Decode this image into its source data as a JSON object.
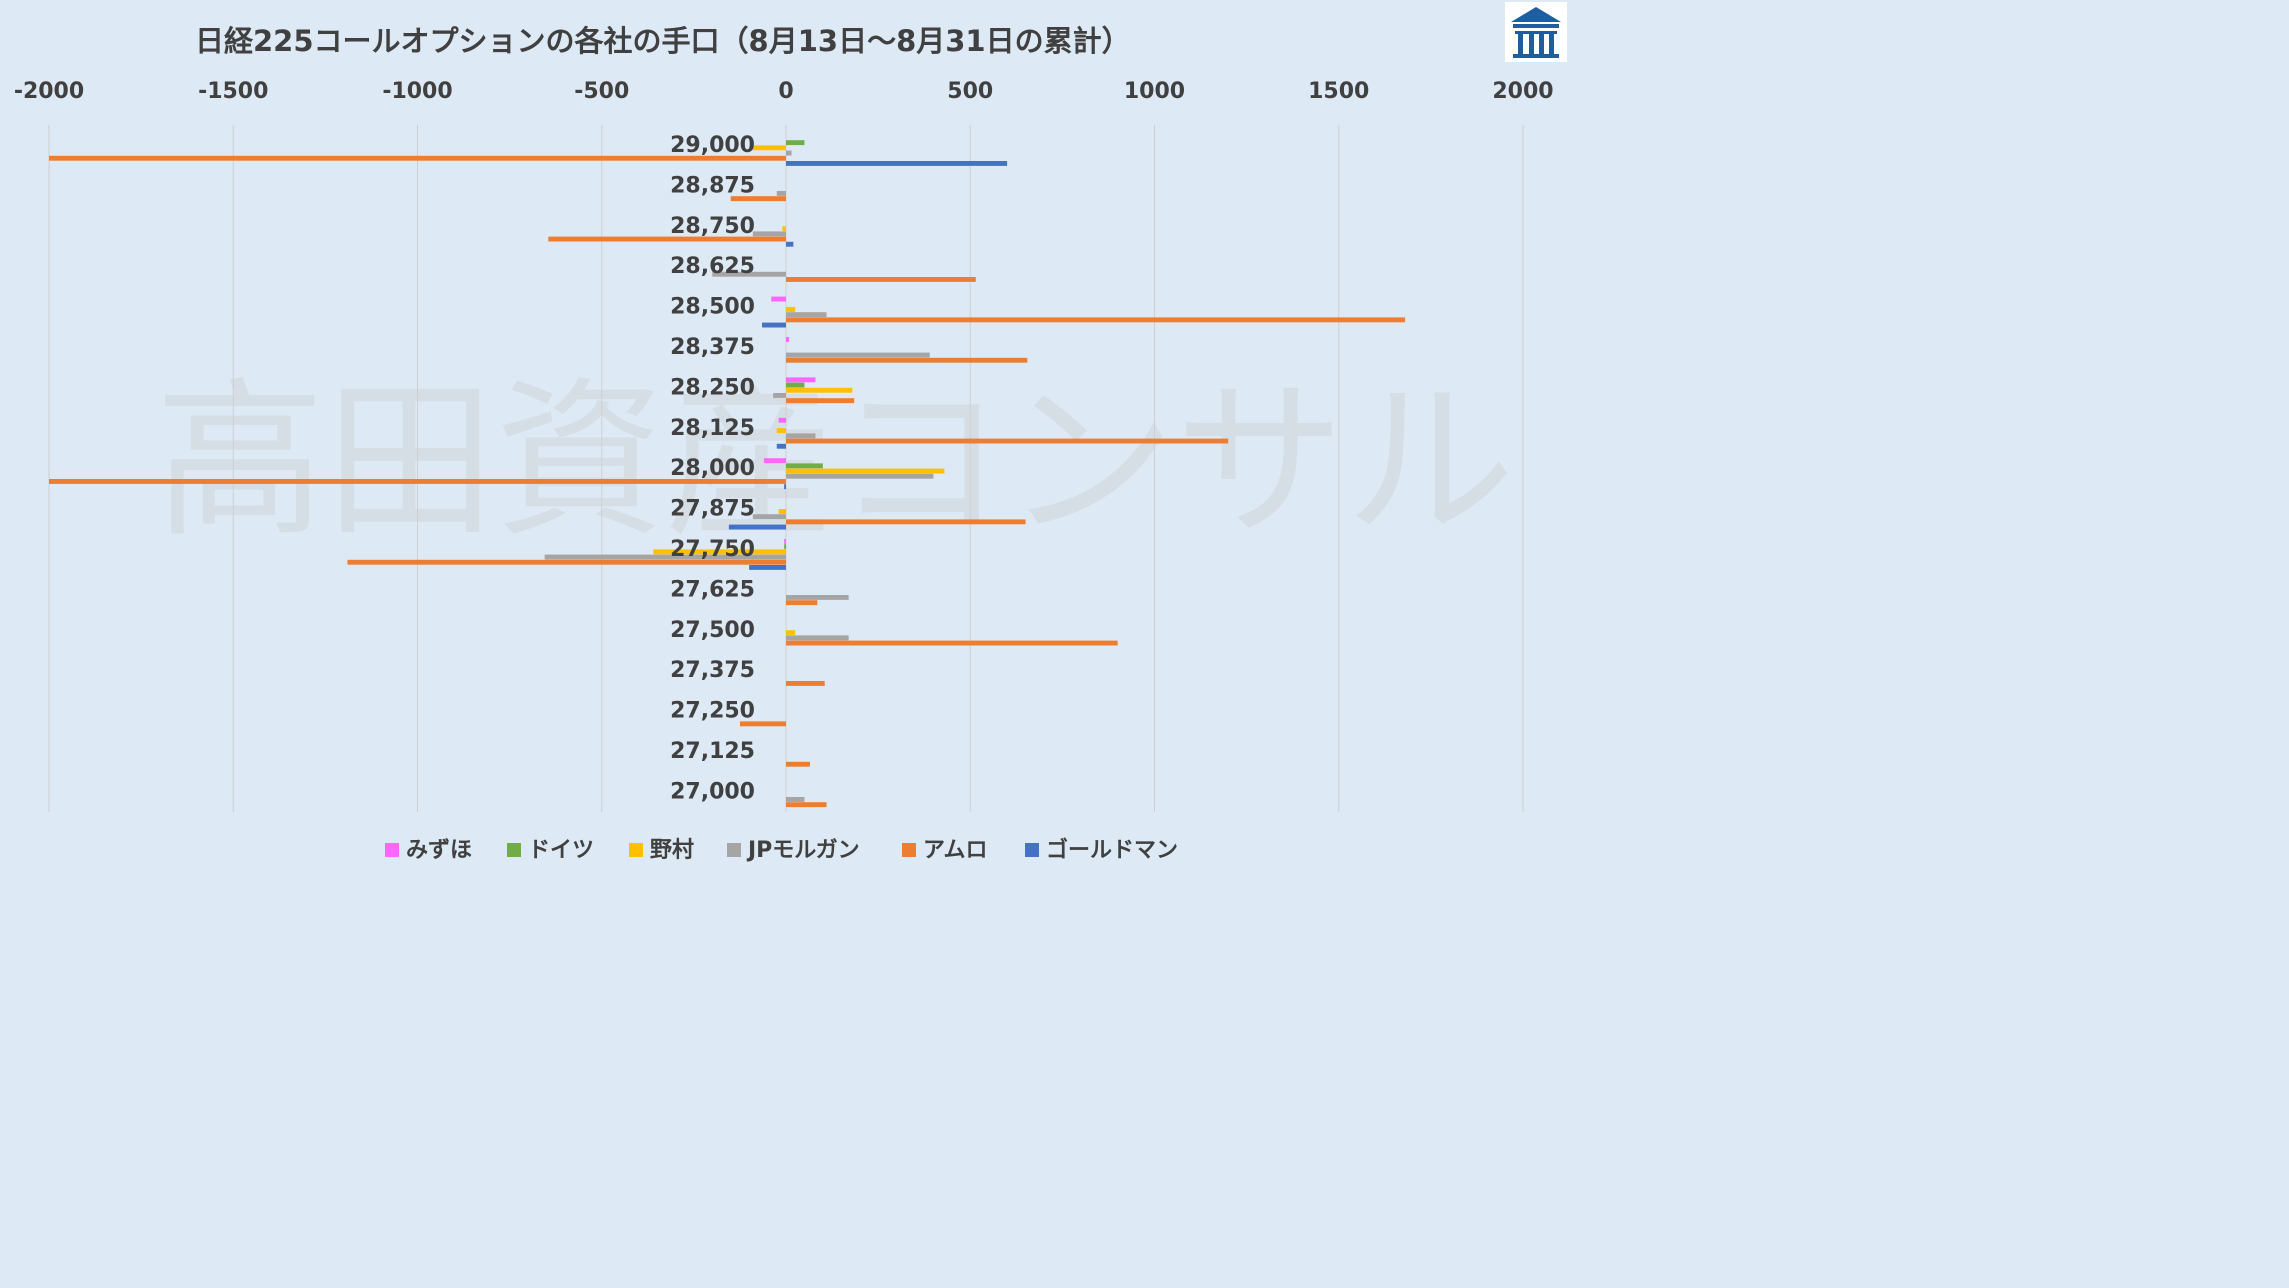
{
  "chart_data": {
    "type": "bar",
    "orientation": "horizontal",
    "title": "日経225コールオプションの各社の手口（8月13日～8月31日の累計）",
    "watermark": "高田資産コンサル",
    "x_ticks": [
      "-2000",
      "-1500",
      "-1000",
      "-500",
      "0",
      "500",
      "1000",
      "1500",
      "2000"
    ],
    "xlim": [
      -2000,
      2000
    ],
    "x_axis_position": "top",
    "grid": true,
    "legend_position": "bottom",
    "categories": [
      "29,000",
      "28,875",
      "28,750",
      "28,625",
      "28,500",
      "28,375",
      "28,250",
      "28,125",
      "28,000",
      "27,875",
      "27,750",
      "27,625",
      "27,500",
      "27,375",
      "27,250",
      "27,125",
      "27,000"
    ],
    "series": [
      {
        "name": "みずほ",
        "color": "#ff66ff",
        "values": [
          0,
          0,
          0,
          0,
          -40,
          8,
          80,
          -20,
          -60,
          0,
          -5,
          0,
          0,
          0,
          0,
          0,
          0
        ]
      },
      {
        "name": "ドイツ",
        "color": "#70ad47",
        "values": [
          50,
          0,
          0,
          0,
          0,
          0,
          50,
          0,
          100,
          0,
          -5,
          0,
          0,
          0,
          0,
          0,
          0
        ]
      },
      {
        "name": "野村",
        "color": "#ffc000",
        "values": [
          -90,
          0,
          -10,
          0,
          25,
          0,
          180,
          -25,
          430,
          -20,
          -360,
          0,
          25,
          0,
          0,
          0,
          0
        ]
      },
      {
        "name": "JPモルガン",
        "color": "#a5a5a5",
        "values": [
          15,
          -25,
          -90,
          -200,
          110,
          390,
          -35,
          80,
          400,
          -90,
          -655,
          170,
          170,
          0,
          0,
          0,
          50
        ]
      },
      {
        "name": "アムロ",
        "color": "#ed7d31",
        "values": [
          -2000,
          -150,
          -645,
          515,
          1680,
          655,
          185,
          1200,
          -2000,
          650,
          -1190,
          85,
          900,
          105,
          -125,
          65,
          110
        ]
      },
      {
        "name": "ゴールドマン",
        "color": "#4472c4",
        "values": [
          600,
          0,
          20,
          0,
          -65,
          0,
          0,
          -25,
          -5,
          -155,
          -100,
          0,
          0,
          0,
          0,
          0,
          0
        ]
      }
    ]
  },
  "logo": {
    "icon": "building-logo-icon",
    "color": "#1f5e9e"
  }
}
